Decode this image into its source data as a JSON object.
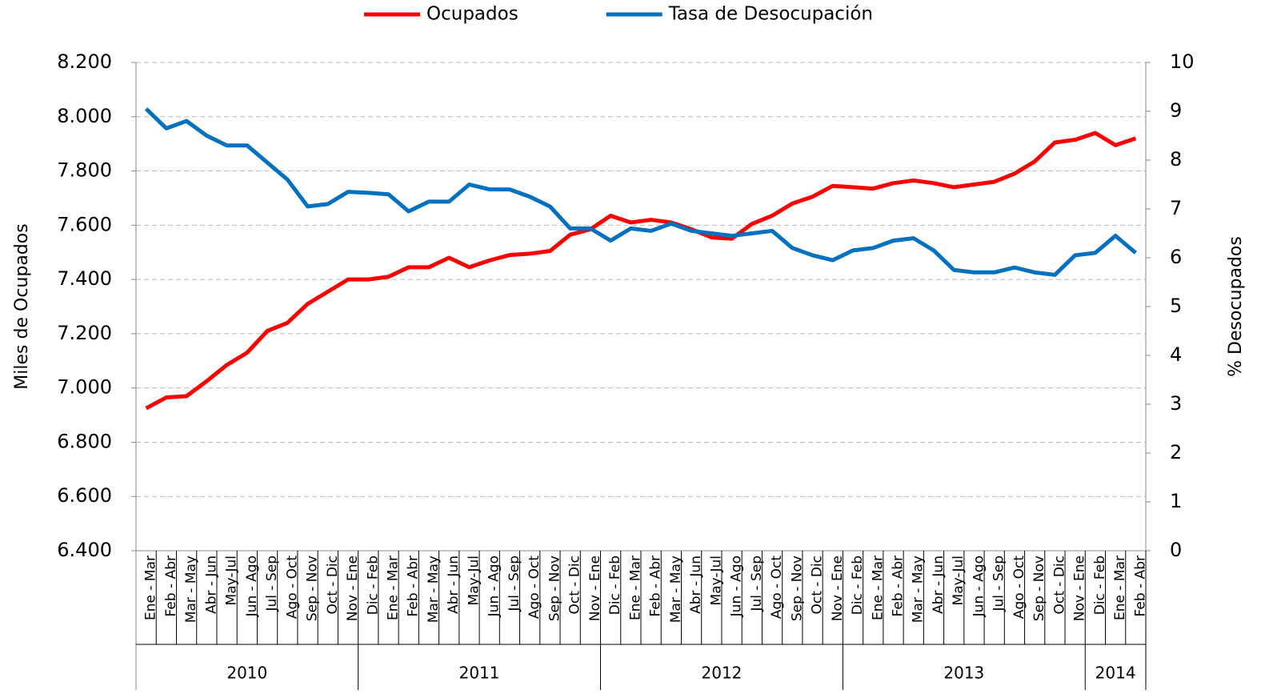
{
  "chart_data": {
    "type": "line",
    "categories": [
      "Ene - Mar",
      "Feb - Abr",
      "Mar - May",
      "Abr - Jun",
      "May-Jul",
      "Jun - Ago",
      "Jul - Sep",
      "Ago - Oct",
      "Sep - Nov",
      "Oct - Dic",
      "Nov - Ene",
      "Dic - Feb",
      "Ene - Mar",
      "Feb - Abr",
      "Mar - May",
      "Abr - Jun",
      "May-Jul",
      "Jun - Ago",
      "Jul - Sep",
      "Ago - Oct",
      "Sep - Nov",
      "Oct - Dic",
      "Nov - Ene",
      "Dic - Feb",
      "Ene - Mar",
      "Feb - Abr",
      "Mar - May",
      "Abr - Jun",
      "May-Jul",
      "Jun - Ago",
      "Jul - Sep",
      "Ago - Oct",
      "Sep - Nov",
      "Oct - Dic",
      "Nov - Ene",
      "Dic - Feb",
      "Ene - Mar",
      "Feb - Abr",
      "Mar - May",
      "Abr - Jun",
      "May-Jul",
      "Jun - Ago",
      "Jul - Sep",
      "Ago - Oct",
      "Sep - Nov",
      "Oct - Dic",
      "Nov - Ene",
      "Dic - Feb",
      "Ene - Mar",
      "Feb - Abr"
    ],
    "years": [
      "2010",
      "2011",
      "2012",
      "2013",
      "2014"
    ],
    "ylabel": "Miles de Ocupados",
    "y2label": "% Desocupados",
    "ylim": [
      6400,
      8200
    ],
    "yticks": [
      {
        "value": 6400,
        "label": "6.400"
      },
      {
        "value": 6600,
        "label": "6.600"
      },
      {
        "value": 6800,
        "label": "6.800"
      },
      {
        "value": 7000,
        "label": "7.000"
      },
      {
        "value": 7200,
        "label": "7.200"
      },
      {
        "value": 7400,
        "label": "7.400"
      },
      {
        "value": 7600,
        "label": "7.600"
      },
      {
        "value": 7800,
        "label": "7.800"
      },
      {
        "value": 8000,
        "label": "8.000"
      },
      {
        "value": 8200,
        "label": "8.200"
      }
    ],
    "y2lim": [
      0,
      10
    ],
    "y2ticks": [
      0,
      1,
      2,
      3,
      4,
      5,
      6,
      7,
      8,
      9,
      10
    ],
    "grid": true,
    "legend": "top",
    "series": [
      {
        "name": "Ocupados",
        "color": "#ff0000",
        "values": [
          6925,
          6965,
          6970,
          7025,
          7085,
          7130,
          7210,
          7240,
          7310,
          7355,
          7400,
          7400,
          7410,
          7445,
          7445,
          7480,
          7445,
          7470,
          7490,
          7495,
          7505,
          7565,
          7585,
          7635,
          7610,
          7620,
          7610,
          7585,
          7555,
          7550,
          7605,
          7635,
          7680,
          7705,
          7745,
          7740,
          7735,
          7755,
          7765,
          7755,
          7740,
          7750,
          7760,
          7790,
          7835,
          7905,
          7915,
          7940,
          7895,
          7920
        ]
      },
      {
        "name": "Tasa de Desocupación",
        "color": "#0070c0",
        "axis": "y2",
        "values": [
          9.05,
          8.65,
          8.8,
          8.5,
          8.3,
          8.3,
          7.95,
          7.6,
          7.05,
          7.1,
          7.35,
          7.33,
          7.3,
          6.95,
          7.15,
          7.15,
          7.5,
          7.4,
          7.4,
          7.25,
          7.05,
          6.6,
          6.6,
          6.35,
          6.6,
          6.55,
          6.7,
          6.55,
          6.5,
          6.45,
          6.5,
          6.55,
          6.2,
          6.05,
          5.95,
          6.15,
          6.2,
          6.35,
          6.4,
          6.15,
          5.75,
          5.7,
          5.7,
          5.8,
          5.7,
          5.65,
          6.05,
          6.1,
          6.45,
          6.1
        ]
      }
    ]
  }
}
